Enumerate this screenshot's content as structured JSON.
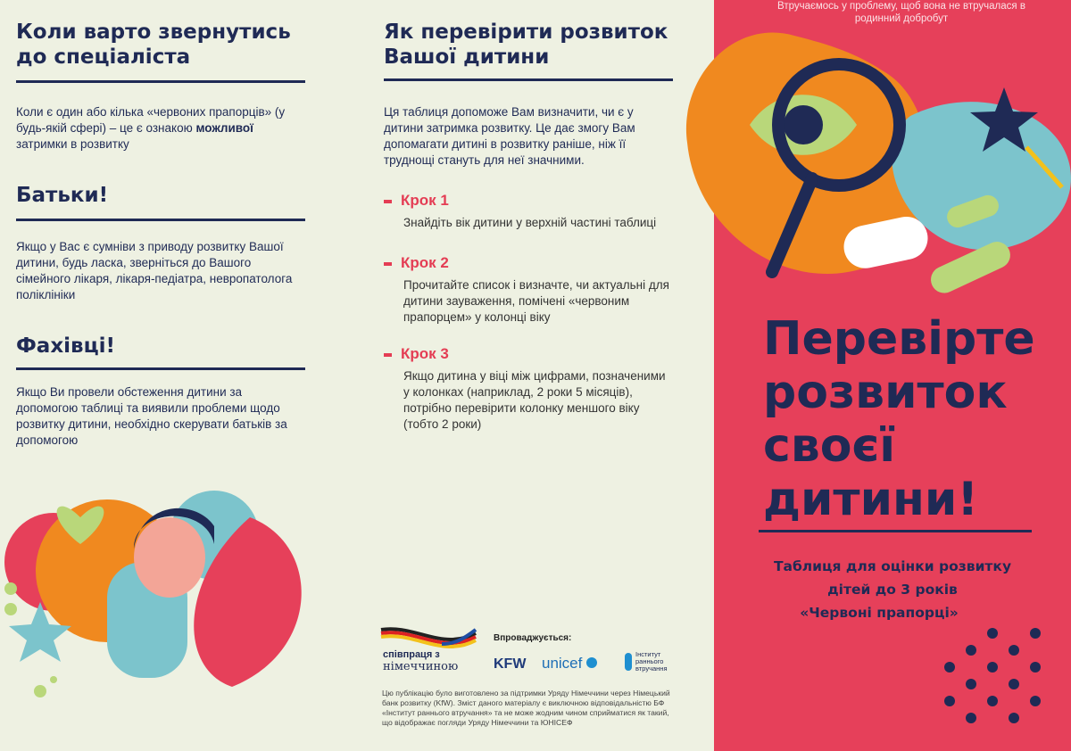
{
  "left": {
    "sections": [
      {
        "title": "Коли варто звернутись до спеціаліста",
        "text_before": "Коли є один або кілька «червоних прапорців» (у будь-якій сфері) – це є ознакою ",
        "text_bold": "можливої",
        "text_after": " затримки в розвитку"
      },
      {
        "title": "Батьки!",
        "text": "Якщо у Вас є сумніви з приводу розвитку Вашої дитини, будь ласка, зверніться до Вашого сімейного лікаря, лікаря-педіатра, невропатолога поліклініки"
      },
      {
        "title": "Фахівці!",
        "text": "Якщо Ви провели обстеження дитини за допомогою таблиці та виявили проблеми щодо розвитку дитини, необхідно скерувати батьків за допомогою"
      }
    ]
  },
  "middle": {
    "title": "Як перевірити розвиток Вашої дитини",
    "intro": "Ця таблиця допоможе Вам визначити, чи є у дитини затримка розвитку. Це дає змогу Вам допомагати дитині в розвитку раніше, ніж її труднощі стануть для неї значними.",
    "steps": [
      {
        "label": "Крок 1",
        "text": "Знайдіть вік дитини у верхній частині таблиці"
      },
      {
        "label": "Крок 2",
        "text": "Прочитайте список і визначте, чи актуальні для дитини зауваження, помічені «червоним прапорцем» у колонці віку"
      },
      {
        "label": "Крок 3",
        "text": "Якщо дитина у віці між цифрами, позначеними у колонках (наприклад, 2 роки 5 місяців), потрібно перевірити колонку меншого віку (тобто 2 роки)"
      }
    ],
    "logos": {
      "germany_line1": "співпраця з",
      "germany_line2": "німеччиною",
      "implemented": "Впроваджується:",
      "kfw": "KFW",
      "unicef": "unicef",
      "institute": "Інститут раннього втручання"
    },
    "disclaimer": "Цю публікацію було виготовлено за підтримки Уряду Німеччини через Німецький банк розвитку (KfW). Зміст даного матеріалу є виключною відповідальністю БФ «Інститут раннього втручання» та не може жодним чином сприйматися як такий, що відображає погляди Уряду Німеччини та ЮНІСЕФ"
  },
  "right": {
    "slogan": "Втручаємось у проблему, щоб вона не втручалася в родинний добробут",
    "title": "Перевірте розвиток своєї дитини!",
    "subtitle_line1": "Таблиця для оцінки розвитку",
    "subtitle_line2": "дітей до 3 років",
    "subtitle_line3": "«Червоні прапорці»"
  },
  "colors": {
    "navy": "#1f2a55",
    "red": "#e6405a",
    "orange": "#f0891f",
    "teal": "#7cc4cc",
    "green": "#b9d77a",
    "background": "#eef1e2"
  }
}
